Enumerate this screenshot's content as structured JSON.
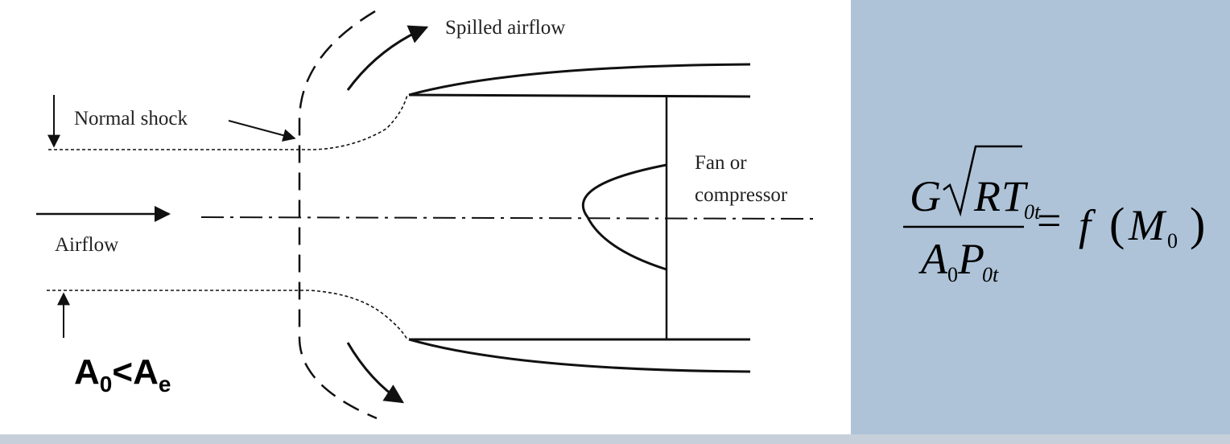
{
  "diagram": {
    "labels": {
      "spilled_airflow": "Spilled airflow",
      "normal_shock": "Normal shock",
      "fan_line1": "Fan or",
      "fan_line2": "compressor",
      "airflow": "Airflow"
    },
    "area_relation": {
      "a": "A",
      "sub_0": "0",
      "op": "<",
      "b": "A",
      "sub_e": "e"
    }
  },
  "equation": {
    "G": "G",
    "R": "R",
    "T": "T",
    "sub_0t_top": "0t",
    "A": "A",
    "sub_0": "0",
    "P": "P",
    "sub_0t_bottom": "0t",
    "equals": "=",
    "f": "f",
    "lparen": "(",
    "M": "M",
    "sub_M0": "0",
    "rparen": ")"
  },
  "colors": {
    "panel": "#aec3d8",
    "footer": "#c7d0da",
    "ink": "#000000"
  }
}
